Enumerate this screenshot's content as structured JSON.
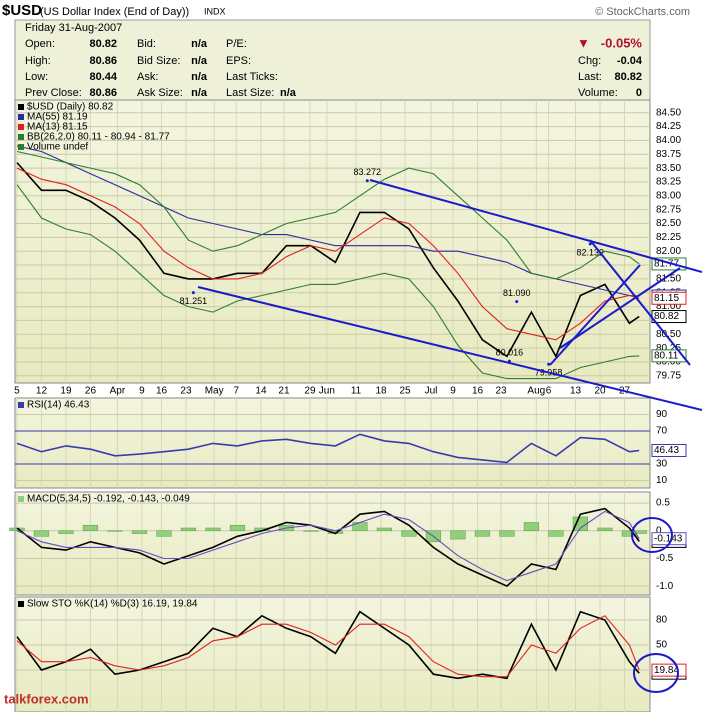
{
  "header": {
    "symbol": "$USD",
    "name": "(US Dollar Index (End of Day))",
    "exchange": "INDX",
    "copyright": "© StockCharts.com",
    "date": "Friday  31-Aug-2007",
    "change": "-0.05%",
    "columns": [
      [
        [
          "Open:",
          "80.82"
        ],
        [
          "High:",
          "80.86"
        ],
        [
          "Low:",
          "80.44"
        ],
        [
          "Prev Close:",
          "80.86"
        ]
      ],
      [
        [
          "Bid:",
          "n/a"
        ],
        [
          "Bid Size:",
          "n/a"
        ],
        [
          "Ask:",
          "n/a"
        ],
        [
          "Ask Size:",
          "n/a"
        ]
      ],
      [
        [
          "P/E:"
        ],
        [
          "EPS:"
        ],
        [
          "Last Ticks:"
        ],
        [
          "Last Size:",
          "n/a"
        ]
      ],
      [
        [
          "Chg:",
          "-0.04"
        ],
        [
          "Last:",
          "80.82"
        ],
        [
          "Volume:",
          "0"
        ]
      ]
    ]
  },
  "watermark": "talkforex.com",
  "chart_data": [
    {
      "type": "line",
      "legend": [
        "$USD (Daily) 80.82",
        "MA(55) 81.19",
        "MA(13) 81.15",
        "BB(26,2.0) 80.11 - 80.94 - 81.77",
        "Volume undef"
      ],
      "xlim": [
        -0.08,
        25.84
      ],
      "xticks": [
        {
          "value": 0,
          "label": "5"
        },
        {
          "value": 1,
          "label": "12"
        },
        {
          "value": 2,
          "label": "19"
        },
        {
          "value": 3,
          "label": "26"
        },
        {
          "value": 4.1,
          "label": "Apr"
        },
        {
          "value": 5.1,
          "label": "9"
        },
        {
          "value": 5.9,
          "label": "16"
        },
        {
          "value": 6.9,
          "label": "23"
        },
        {
          "value": 8.05,
          "label": "May"
        },
        {
          "value": 8.95,
          "label": "7"
        },
        {
          "value": 9.96,
          "label": "14"
        },
        {
          "value": 10.9,
          "label": "21"
        },
        {
          "value": 11.96,
          "label": "29"
        },
        {
          "value": 12.65,
          "label": "Jun"
        },
        {
          "value": 13.84,
          "label": "11"
        },
        {
          "value": 14.86,
          "label": "18"
        },
        {
          "value": 15.84,
          "label": "25"
        },
        {
          "value": 16.9,
          "label": "Jul"
        },
        {
          "value": 17.8,
          "label": "9"
        },
        {
          "value": 18.8,
          "label": "16"
        },
        {
          "value": 19.76,
          "label": "23"
        },
        {
          "value": 21.2,
          "label": "Aug"
        },
        {
          "value": 21.7,
          "label": "6"
        },
        {
          "value": 22.8,
          "label": "13"
        },
        {
          "value": 23.8,
          "label": "20"
        },
        {
          "value": 24.8,
          "label": "27"
        }
      ],
      "ylim": [
        79.62,
        84.73
      ],
      "yticks": [
        {
          "value": 79.75,
          "label": "79.75"
        },
        {
          "value": 80,
          "label": "80.00"
        },
        {
          "value": 80.25,
          "label": "80.25"
        },
        {
          "value": 80.5,
          "label": "80.50"
        },
        {
          "value": 80.75,
          "label": "80.75"
        },
        {
          "value": 81,
          "label": "81.00"
        },
        {
          "value": 81.25,
          "label": "81.25"
        },
        {
          "value": 81.5,
          "label": "81.50"
        },
        {
          "value": 81.75,
          "label": "81.75"
        },
        {
          "value": 82,
          "label": "82.00"
        },
        {
          "value": 82.25,
          "label": "82.25"
        },
        {
          "value": 82.5,
          "label": "82.50"
        },
        {
          "value": 82.75,
          "label": "82.75"
        },
        {
          "value": 83,
          "label": "83.00"
        },
        {
          "value": 83.25,
          "label": "83.25"
        },
        {
          "value": 83.5,
          "label": "83.50"
        },
        {
          "value": 83.75,
          "label": "83.75"
        },
        {
          "value": 84,
          "label": "84.00"
        },
        {
          "value": 84.25,
          "label": "84.25"
        },
        {
          "value": 84.5,
          "label": "84.50"
        }
      ],
      "x": [
        0,
        1,
        2,
        3,
        4,
        5,
        6,
        7,
        8,
        9,
        10,
        11,
        12,
        13,
        14,
        15,
        16,
        17,
        18,
        19,
        20,
        21,
        22,
        23,
        24,
        25,
        25.4
      ],
      "series": [
        {
          "name": "$USD",
          "color": "#000000",
          "values": [
            83.6,
            83.1,
            83.1,
            82.9,
            82.6,
            82.2,
            81.6,
            81.5,
            81.5,
            81.6,
            81.6,
            82.1,
            82.1,
            81.8,
            82.7,
            82.7,
            82.4,
            81.7,
            81.1,
            80.4,
            80.1,
            80.9,
            80.1,
            81.2,
            81.4,
            80.7,
            80.82
          ]
        },
        {
          "name": "MA(55)",
          "color": "#2a2aa0",
          "values": [
            83.9,
            83.8,
            83.6,
            83.4,
            83.2,
            83.0,
            82.8,
            82.6,
            82.5,
            82.4,
            82.3,
            82.3,
            82.2,
            82.1,
            82.1,
            82.1,
            82.1,
            82.0,
            82.0,
            81.9,
            81.8,
            81.6,
            81.5,
            81.4,
            81.3,
            81.2,
            81.19
          ]
        },
        {
          "name": "MA(13)",
          "color": "#e02020",
          "values": [
            83.5,
            83.3,
            83.2,
            83.0,
            82.8,
            82.5,
            82.0,
            81.7,
            81.5,
            81.5,
            81.6,
            81.9,
            82.1,
            82.0,
            82.3,
            82.6,
            82.5,
            82.1,
            81.6,
            81.0,
            80.6,
            80.5,
            80.4,
            80.7,
            81.1,
            81.2,
            81.15
          ]
        },
        {
          "name": "BB upper",
          "color": "#2e7d2e",
          "values": [
            83.8,
            83.7,
            83.6,
            83.5,
            83.4,
            83.2,
            82.8,
            82.2,
            82.0,
            82.1,
            82.3,
            82.5,
            82.6,
            82.7,
            83.0,
            83.3,
            83.5,
            83.4,
            83.0,
            82.6,
            82.2,
            81.6,
            81.5,
            81.7,
            82.0,
            81.9,
            81.77
          ]
        },
        {
          "name": "BB lower",
          "color": "#2e7d2e",
          "values": [
            83.2,
            82.6,
            82.4,
            82.3,
            82.0,
            81.6,
            81.2,
            81.0,
            80.9,
            81.1,
            81.2,
            81.3,
            81.4,
            81.4,
            81.5,
            81.6,
            81.5,
            81.0,
            80.3,
            79.8,
            79.7,
            79.7,
            79.7,
            79.9,
            80.0,
            80.1,
            80.11
          ]
        }
      ],
      "annotations": [
        {
          "x": 14.3,
          "y": 83.272,
          "label": "83.272"
        },
        {
          "x": 7.2,
          "y": 81.251,
          "label": "81.251"
        },
        {
          "x": 20.1,
          "y": 80.016,
          "label": "80.016"
        },
        {
          "x": 21.7,
          "y": 79.958,
          "label": "79.958"
        },
        {
          "x": 20.4,
          "y": 81.09,
          "label": "81.090"
        },
        {
          "x": 23.4,
          "y": 82.132,
          "label": "82.132"
        }
      ]
    },
    {
      "type": "line",
      "legend": [
        "RSI(14) 46.43"
      ],
      "ylim": [
        1,
        110
      ],
      "yticks": [
        10,
        30,
        70,
        90
      ],
      "x": [
        0,
        1,
        2,
        3,
        4,
        5,
        6,
        7,
        8,
        9,
        10,
        11,
        12,
        13,
        14,
        15,
        16,
        17,
        18,
        19,
        20,
        21,
        22,
        23,
        24,
        25,
        25.4
      ],
      "series": [
        {
          "name": "RSI(14)",
          "color": "#3a3ab0",
          "values": [
            55,
            45,
            52,
            48,
            40,
            42,
            45,
            48,
            55,
            52,
            58,
            60,
            55,
            52,
            66,
            58,
            55,
            45,
            38,
            35,
            32,
            55,
            40,
            62,
            60,
            45,
            46.43
          ]
        }
      ]
    },
    {
      "type": "line",
      "legend": [
        "MACD(5,34,5) -0.192, -0.143, -0.049"
      ],
      "ylim": [
        -1.16,
        0.7
      ],
      "yticks": [
        0.5,
        0,
        -0.5,
        {
          "value": -1,
          "label": "-1.0"
        }
      ],
      "x": [
        0,
        1,
        2,
        3,
        4,
        5,
        6,
        7,
        8,
        9,
        10,
        11,
        12,
        13,
        14,
        15,
        16,
        17,
        18,
        19,
        20,
        21,
        22,
        23,
        24,
        25,
        25.4
      ],
      "series": [
        {
          "name": "Histogram",
          "type": "bar",
          "color": "#8fcf7a",
          "values": [
            0.05,
            -0.1,
            -0.05,
            0.1,
            0,
            -0.05,
            -0.1,
            0.05,
            0.05,
            0.1,
            0.05,
            0.1,
            0,
            -0.05,
            0.15,
            0.05,
            -0.1,
            -0.2,
            -0.15,
            -0.1,
            -0.1,
            0.15,
            -0.1,
            0.25,
            0.05,
            -0.1,
            -0.049
          ]
        },
        {
          "name": "MACD",
          "color": "#000000",
          "values": [
            0.05,
            -0.3,
            -0.35,
            -0.2,
            -0.3,
            -0.4,
            -0.6,
            -0.45,
            -0.3,
            -0.1,
            0.0,
            0.15,
            0.1,
            -0.05,
            0.3,
            0.35,
            0.1,
            -0.3,
            -0.6,
            -0.8,
            -1.0,
            -0.6,
            -0.7,
            0.3,
            0.4,
            0.05,
            -0.192
          ]
        },
        {
          "name": "Signal",
          "color": "#6a4ac0",
          "values": [
            0.0,
            -0.2,
            -0.3,
            -0.3,
            -0.3,
            -0.35,
            -0.5,
            -0.5,
            -0.35,
            -0.2,
            -0.05,
            0.05,
            0.1,
            0.0,
            0.15,
            0.3,
            0.2,
            -0.1,
            -0.45,
            -0.7,
            -0.9,
            -0.75,
            -0.6,
            0.05,
            0.35,
            0.15,
            -0.143
          ]
        }
      ]
    },
    {
      "type": "line",
      "legend": [
        "Slow STO %K(14) %D(3) 16.19, 19.84"
      ],
      "ylim": [
        -30.4,
        107.6
      ],
      "yticks": [
        20,
        50,
        80
      ],
      "x": [
        0,
        1,
        2,
        3,
        4,
        5,
        6,
        7,
        8,
        9,
        10,
        11,
        12,
        13,
        14,
        15,
        16,
        17,
        18,
        19,
        20,
        21,
        22,
        23,
        24,
        25,
        25.4
      ],
      "series": [
        {
          "name": "%K(14)",
          "color": "#000000",
          "values": [
            60,
            20,
            30,
            45,
            15,
            20,
            30,
            40,
            70,
            60,
            85,
            70,
            60,
            40,
            90,
            70,
            50,
            15,
            10,
            15,
            10,
            75,
            20,
            90,
            80,
            30,
            16.19
          ]
        },
        {
          "name": "%D(3)",
          "color": "#e02020",
          "values": [
            55,
            30,
            30,
            35,
            25,
            20,
            25,
            35,
            55,
            60,
            75,
            75,
            65,
            50,
            75,
            75,
            60,
            30,
            15,
            12,
            12,
            50,
            40,
            70,
            85,
            50,
            19.84
          ]
        }
      ]
    }
  ]
}
